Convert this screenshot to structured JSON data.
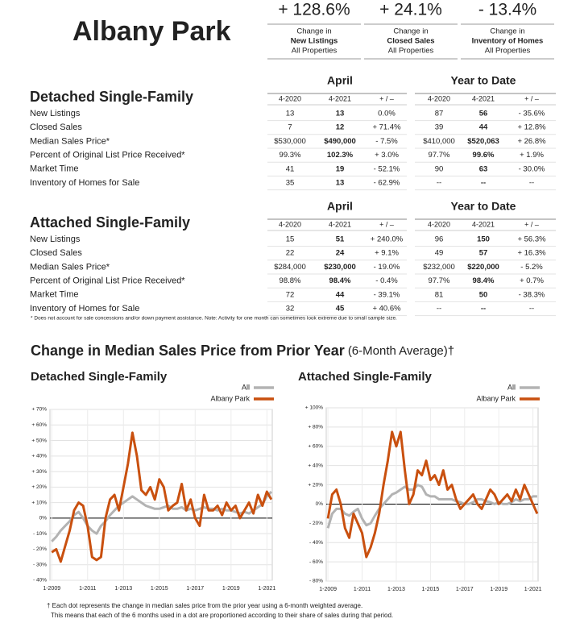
{
  "header": {
    "title": "Albany Park"
  },
  "kpis": [
    {
      "value": "+ 128.6%",
      "line1": "Change in",
      "line2": "New Listings",
      "line3": "All Properties"
    },
    {
      "value": "+ 24.1%",
      "line1": "Change in",
      "line2": "Closed Sales",
      "line3": "All Properties"
    },
    {
      "value": "- 13.4%",
      "line1": "Change in",
      "line2": "Inventory of Homes",
      "line3": "All Properties"
    }
  ],
  "tables": [
    {
      "title": "Detached Single-Family",
      "period1": "April",
      "period2": "Year to Date",
      "columns": [
        "4-2020",
        "4-2021",
        "+ / –",
        "4-2020",
        "4-2021",
        "+ / –"
      ],
      "rows": [
        [
          "New Listings",
          "13",
          "13",
          "0.0%",
          "87",
          "56",
          "- 35.6%"
        ],
        [
          "Closed Sales",
          "7",
          "12",
          "+ 71.4%",
          "39",
          "44",
          "+ 12.8%"
        ],
        [
          "Median Sales Price*",
          "$530,000",
          "$490,000",
          "- 7.5%",
          "$410,000",
          "$520,063",
          "+ 26.8%"
        ],
        [
          "Percent of Original List Price Received*",
          "99.3%",
          "102.3%",
          "+ 3.0%",
          "97.7%",
          "99.6%",
          "+ 1.9%"
        ],
        [
          "Market Time",
          "41",
          "19",
          "- 52.1%",
          "90",
          "63",
          "- 30.0%"
        ],
        [
          "Inventory of Homes for Sale",
          "35",
          "13",
          "- 62.9%",
          "--",
          "--",
          "--"
        ]
      ]
    },
    {
      "title": "Attached Single-Family",
      "period1": "April",
      "period2": "Year to Date",
      "columns": [
        "4-2020",
        "4-2021",
        "+ / –",
        "4-2020",
        "4-2021",
        "+ / –"
      ],
      "rows": [
        [
          "New Listings",
          "15",
          "51",
          "+ 240.0%",
          "96",
          "150",
          "+ 56.3%"
        ],
        [
          "Closed Sales",
          "22",
          "24",
          "+ 9.1%",
          "49",
          "57",
          "+ 16.3%"
        ],
        [
          "Median Sales Price*",
          "$284,000",
          "$230,000",
          "- 19.0%",
          "$232,000",
          "$220,000",
          "- 5.2%"
        ],
        [
          "Percent of Original List Price Received*",
          "98.8%",
          "98.4%",
          "- 0.4%",
          "97.7%",
          "98.4%",
          "+ 0.7%"
        ],
        [
          "Market Time",
          "72",
          "44",
          "- 39.1%",
          "81",
          "50",
          "- 38.3%"
        ],
        [
          "Inventory of Homes for Sale",
          "32",
          "45",
          "+ 40.6%",
          "--",
          "--",
          "--"
        ]
      ]
    }
  ],
  "table_note": "* Does not account for sale concessions and/or down payment assistance. Note: Activity for one month can sometimes look extreme due to small sample size.",
  "section": {
    "title": "Change in Median Sales Price from Prior Year",
    "subtitle": "(6-Month Average)†"
  },
  "chart_data": [
    {
      "type": "line",
      "title": "Detached Single-Family",
      "legend": "top-right",
      "grid": true,
      "x": [
        2009,
        2009.25,
        2009.5,
        2009.75,
        2010,
        2010.25,
        2010.5,
        2010.75,
        2011,
        2011.25,
        2011.5,
        2011.75,
        2012,
        2012.25,
        2012.5,
        2012.75,
        2013,
        2013.25,
        2013.5,
        2013.75,
        2014,
        2014.25,
        2014.5,
        2014.75,
        2015,
        2015.25,
        2015.5,
        2015.75,
        2016,
        2016.25,
        2016.5,
        2016.75,
        2017,
        2017.25,
        2017.5,
        2017.75,
        2018,
        2018.25,
        2018.5,
        2018.75,
        2019,
        2019.25,
        2019.5,
        2019.75,
        2020,
        2020.25,
        2020.5,
        2020.75,
        2021,
        2021.25
      ],
      "xlim": [
        2008.9,
        2021.3
      ],
      "xticks": [
        {
          "value": 2009,
          "label": "1-2009"
        },
        {
          "value": 2011,
          "label": "1-2011"
        },
        {
          "value": 2013,
          "label": "1-2013"
        },
        {
          "value": 2015,
          "label": "1-2015"
        },
        {
          "value": 2017,
          "label": "1-2017"
        },
        {
          "value": 2019,
          "label": "1-2019"
        },
        {
          "value": 2021,
          "label": "1-2021"
        }
      ],
      "ylim": [
        -40,
        70
      ],
      "yticks": [
        {
          "value": -40,
          "label": "- 40%"
        },
        {
          "value": -30,
          "label": "- 30%"
        },
        {
          "value": -20,
          "label": "- 20%"
        },
        {
          "value": -10,
          "label": "- 10%"
        },
        {
          "value": 0,
          "label": "0%"
        },
        {
          "value": 10,
          "label": "+ 10%"
        },
        {
          "value": 20,
          "label": "+ 20%"
        },
        {
          "value": 30,
          "label": "+ 30%"
        },
        {
          "value": 40,
          "label": "+ 40%"
        },
        {
          "value": 50,
          "label": "+ 50%"
        },
        {
          "value": 60,
          "label": "+ 60%"
        },
        {
          "value": 70,
          "label": "+ 70%"
        }
      ],
      "series": [
        {
          "name": "All",
          "color": "#b3b3b3",
          "values": [
            -15,
            -12,
            -8,
            -5,
            -2,
            2,
            4,
            0,
            -5,
            -8,
            -10,
            -5,
            -2,
            2,
            5,
            8,
            10,
            12,
            14,
            12,
            10,
            8,
            7,
            6,
            6,
            7,
            8,
            6,
            6,
            7,
            5,
            6,
            5,
            6,
            7,
            6,
            6,
            5,
            6,
            5,
            5,
            4,
            3,
            4,
            3,
            5,
            7,
            9,
            14,
            17
          ]
        },
        {
          "name": "Albany Park",
          "color": "#c9500f",
          "values": [
            -22,
            -20,
            -28,
            -18,
            -8,
            5,
            10,
            8,
            -5,
            -25,
            -27,
            -25,
            0,
            12,
            15,
            5,
            20,
            35,
            55,
            40,
            18,
            15,
            20,
            12,
            25,
            20,
            5,
            8,
            10,
            22,
            5,
            12,
            0,
            -5,
            15,
            5,
            5,
            8,
            2,
            10,
            5,
            8,
            0,
            5,
            10,
            3,
            15,
            8,
            17,
            12
          ]
        }
      ]
    },
    {
      "type": "line",
      "title": "Attached Single-Family",
      "legend": "top-right",
      "grid": true,
      "x": [
        2009,
        2009.25,
        2009.5,
        2009.75,
        2010,
        2010.25,
        2010.5,
        2010.75,
        2011,
        2011.25,
        2011.5,
        2011.75,
        2012,
        2012.25,
        2012.5,
        2012.75,
        2013,
        2013.25,
        2013.5,
        2013.75,
        2014,
        2014.25,
        2014.5,
        2014.75,
        2015,
        2015.25,
        2015.5,
        2015.75,
        2016,
        2016.25,
        2016.5,
        2016.75,
        2017,
        2017.25,
        2017.5,
        2017.75,
        2018,
        2018.25,
        2018.5,
        2018.75,
        2019,
        2019.25,
        2019.5,
        2019.75,
        2020,
        2020.25,
        2020.5,
        2020.75,
        2021,
        2021.25
      ],
      "xlim": [
        2008.9,
        2021.3
      ],
      "xticks": [
        {
          "value": 2009,
          "label": "1-2009"
        },
        {
          "value": 2011,
          "label": "1-2011"
        },
        {
          "value": 2013,
          "label": "1-2013"
        },
        {
          "value": 2015,
          "label": "1-2015"
        },
        {
          "value": 2017,
          "label": "1-2017"
        },
        {
          "value": 2019,
          "label": "1-2019"
        },
        {
          "value": 2021,
          "label": "1-2021"
        }
      ],
      "ylim": [
        -80,
        100
      ],
      "yticks": [
        {
          "value": -80,
          "label": "- 80%"
        },
        {
          "value": -60,
          "label": "- 60%"
        },
        {
          "value": -40,
          "label": "- 40%"
        },
        {
          "value": -20,
          "label": "- 20%"
        },
        {
          "value": 0,
          "label": "0%"
        },
        {
          "value": 20,
          "label": "+ 20%"
        },
        {
          "value": 40,
          "label": "+ 40%"
        },
        {
          "value": 60,
          "label": "+ 60%"
        },
        {
          "value": 80,
          "label": "+ 80%"
        },
        {
          "value": 100,
          "label": "+ 100%"
        }
      ],
      "series": [
        {
          "name": "All",
          "color": "#b3b3b3",
          "values": [
            -25,
            -10,
            -5,
            -5,
            -10,
            -12,
            -8,
            -5,
            -15,
            -22,
            -20,
            -12,
            -5,
            0,
            5,
            10,
            12,
            15,
            18,
            15,
            15,
            20,
            18,
            10,
            8,
            8,
            5,
            5,
            5,
            5,
            3,
            2,
            0,
            0,
            2,
            5,
            5,
            3,
            2,
            0,
            2,
            0,
            0,
            2,
            5,
            3,
            5,
            5,
            8,
            8
          ]
        },
        {
          "name": "Albany Park",
          "color": "#c9500f",
          "values": [
            -15,
            10,
            15,
            0,
            -25,
            -35,
            -10,
            -20,
            -30,
            -55,
            -45,
            -30,
            -10,
            20,
            45,
            75,
            60,
            75,
            35,
            0,
            10,
            35,
            30,
            45,
            25,
            30,
            20,
            35,
            15,
            20,
            5,
            -5,
            0,
            5,
            10,
            0,
            -5,
            5,
            15,
            10,
            0,
            5,
            10,
            3,
            15,
            5,
            20,
            10,
            0,
            -10
          ]
        }
      ]
    }
  ],
  "footnotes": [
    "† Each dot represents the change in median sales price from the prior year using a 6-month weighted average.",
    "This means that each of the 6 months used in a dot are proportioned according to their share of sales during that period."
  ]
}
